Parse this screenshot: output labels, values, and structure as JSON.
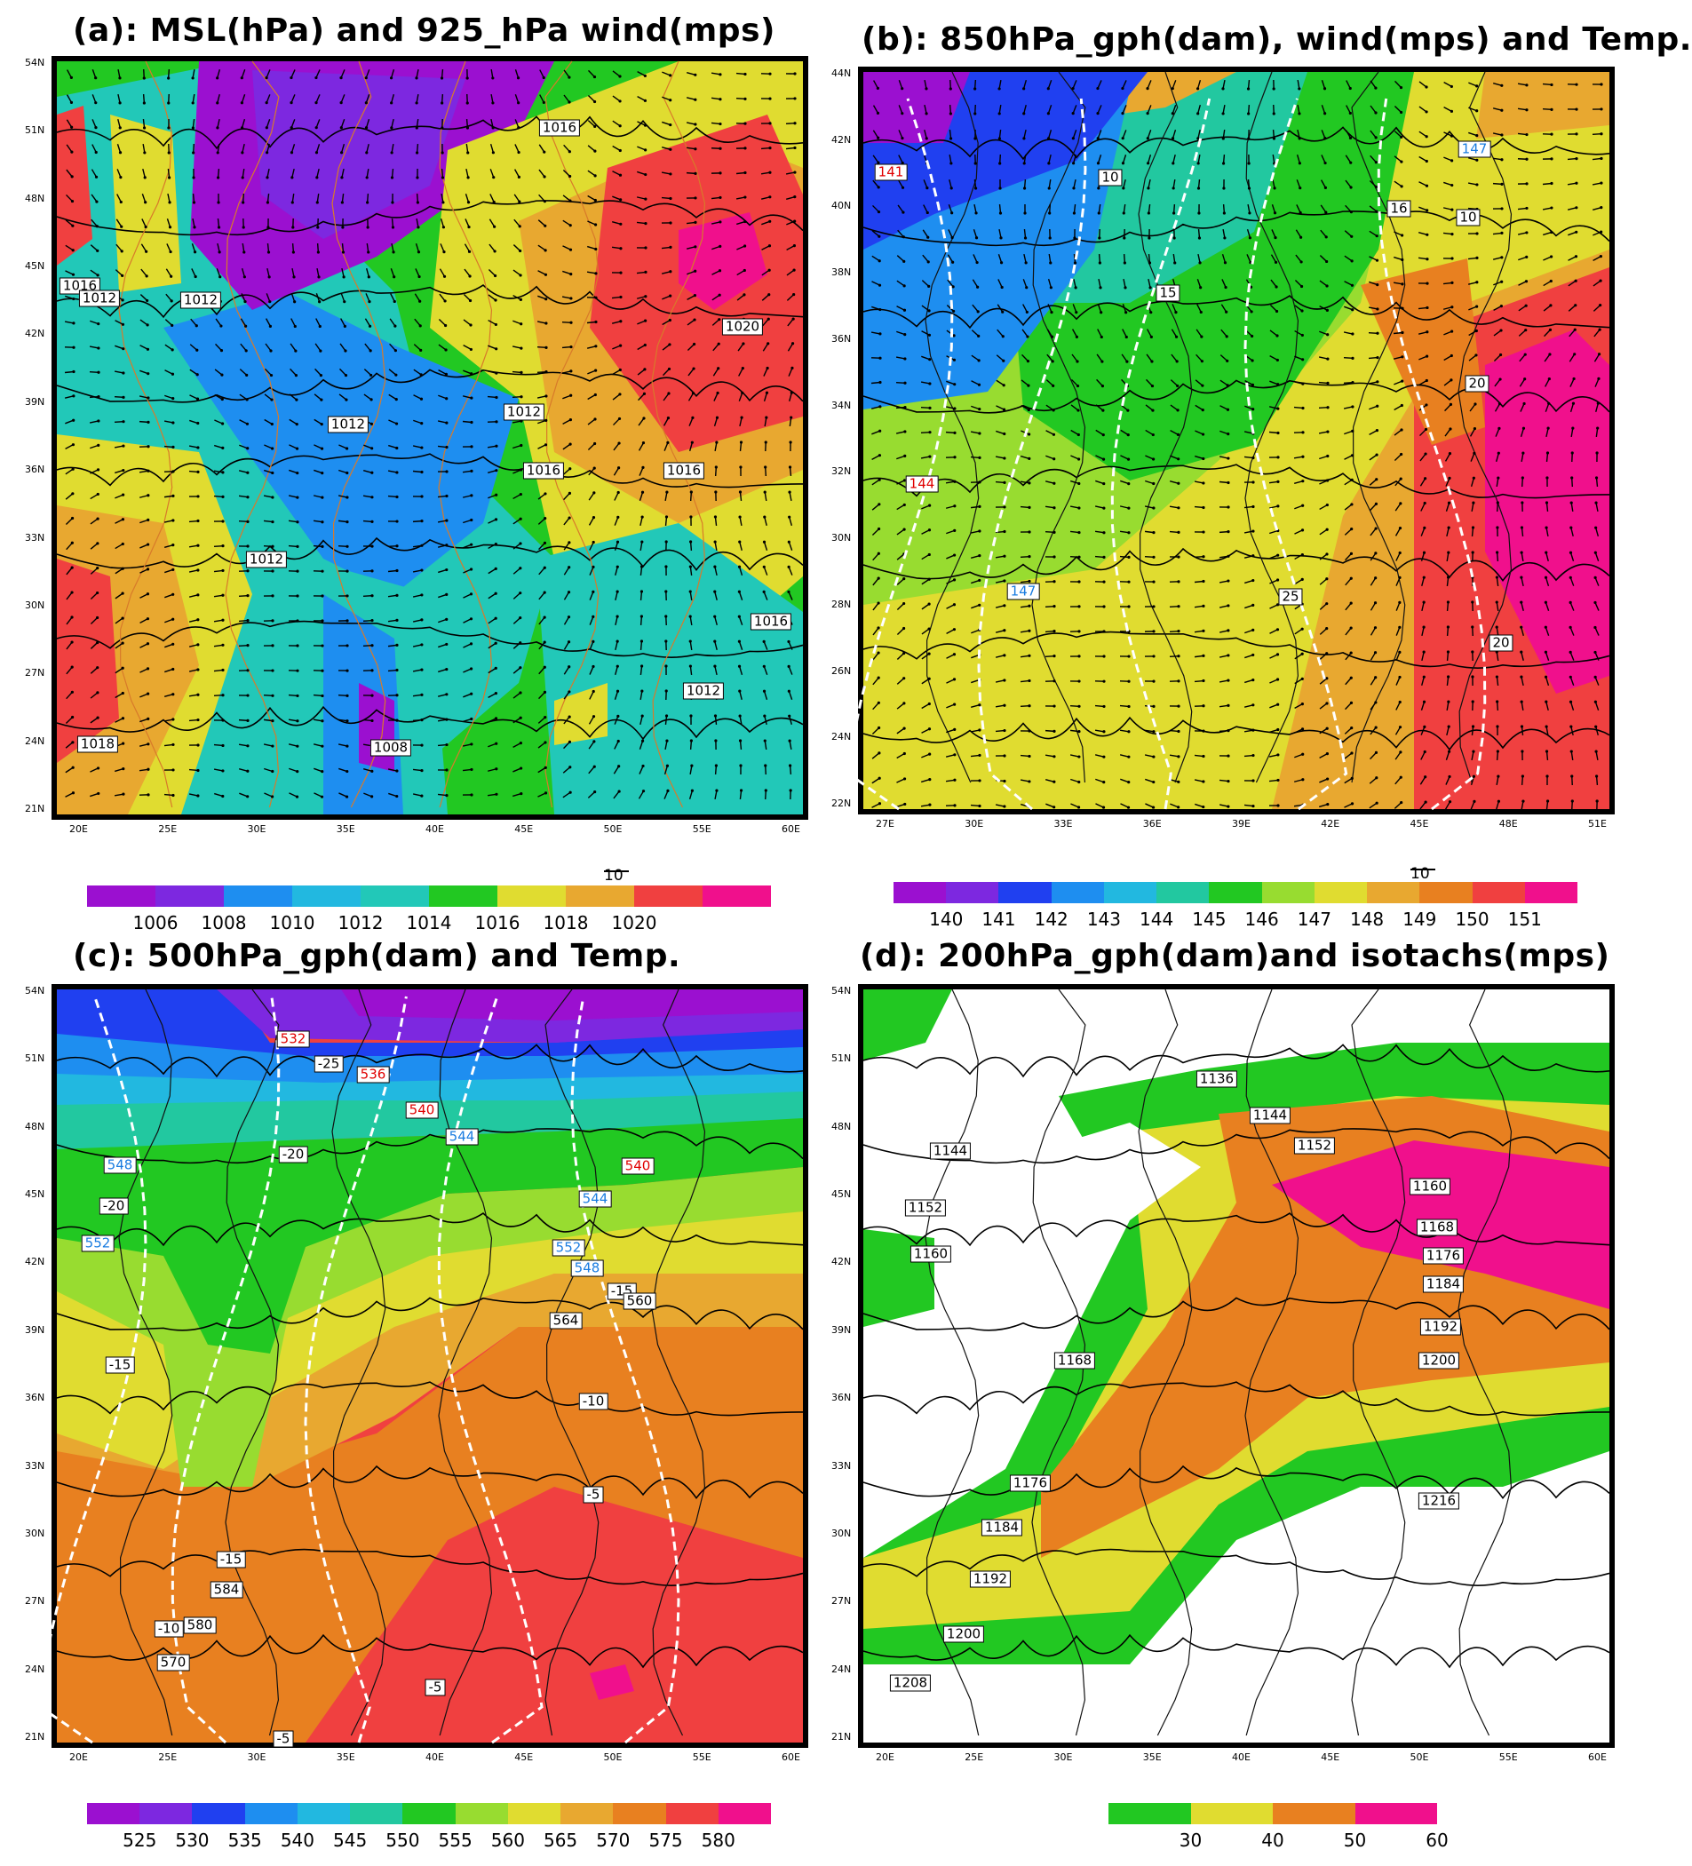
{
  "panels": [
    {
      "id": "a",
      "title": "(a): MSL(hPa) and 925_hPa wind(mps)",
      "lat_ticks": [
        "54N",
        "51N",
        "48N",
        "45N",
        "42N",
        "39N",
        "36N",
        "33N",
        "30N",
        "27N",
        "24N",
        "21N"
      ],
      "lon_ticks": [
        "20E",
        "25E",
        "30E",
        "35E",
        "40E",
        "45E",
        "50E",
        "55E",
        "60E"
      ],
      "vector_ref": "10",
      "colorbar": {
        "colors": [
          "#9b10d0",
          "#7d28e0",
          "#1e8ef0",
          "#22b8e0",
          "#22c8b8",
          "#22c822",
          "#e0dc30",
          "#e8a830",
          "#f04040",
          "#f0108c"
        ],
        "labels": [
          "1006",
          "1008",
          "1010",
          "1012",
          "1014",
          "1016",
          "1018",
          "1020"
        ]
      },
      "contour_labels": [
        "1018",
        "1016",
        "1012",
        "1012",
        "1020",
        "1012",
        "1016",
        "1016",
        "1012",
        "1012",
        "1016",
        "1012",
        "1008",
        "1016"
      ]
    },
    {
      "id": "b",
      "title": "(b): 850hPa_gph(dam), wind(mps) and Temp.",
      "lat_ticks": [
        "44N",
        "42N",
        "40N",
        "38N",
        "36N",
        "34N",
        "32N",
        "30N",
        "28N",
        "26N",
        "24N",
        "22N"
      ],
      "lon_ticks": [
        "27E",
        "30E",
        "33E",
        "36E",
        "39E",
        "42E",
        "45E",
        "48E",
        "51E"
      ],
      "vector_ref": "10",
      "colorbar": {
        "colors": [
          "#9b10d0",
          "#7d28e0",
          "#2040f0",
          "#1e8ef0",
          "#22b8e0",
          "#22c8a0",
          "#22c822",
          "#98dc30",
          "#e0dc30",
          "#e8a830",
          "#e88020",
          "#f04040",
          "#f0108c"
        ],
        "labels": [
          "140",
          "141",
          "142",
          "143",
          "144",
          "145",
          "146",
          "147",
          "148",
          "149",
          "150",
          "151"
        ]
      },
      "contour_labels": [
        "141",
        "10",
        "147",
        "16",
        "10",
        "15",
        "144",
        "20",
        "147",
        "25",
        "20"
      ]
    },
    {
      "id": "c",
      "title": "(c): 500hPa_gph(dam) and Temp.",
      "lat_ticks": [
        "54N",
        "51N",
        "48N",
        "45N",
        "42N",
        "39N",
        "36N",
        "33N",
        "30N",
        "27N",
        "24N",
        "21N"
      ],
      "lon_ticks": [
        "20E",
        "25E",
        "30E",
        "35E",
        "40E",
        "45E",
        "50E",
        "55E",
        "60E"
      ],
      "colorbar": {
        "colors": [
          "#9b10d0",
          "#7d28e0",
          "#2040f0",
          "#1e8ef0",
          "#22b8e0",
          "#22c8a0",
          "#22c822",
          "#98dc30",
          "#e0dc30",
          "#e8a830",
          "#e88020",
          "#f04040",
          "#f0108c"
        ],
        "labels": [
          "525",
          "530",
          "535",
          "540",
          "545",
          "550",
          "555",
          "560",
          "565",
          "570",
          "575",
          "580"
        ]
      },
      "contour_labels": [
        "532",
        "-25",
        "536",
        "540",
        "-20",
        "544",
        "548",
        "540",
        "-20",
        "544",
        "552",
        "548",
        "552",
        "-15",
        "560",
        "564",
        "-15",
        "-10",
        "-5",
        "-15",
        "584",
        "-10",
        "580",
        "570",
        "-5",
        "-5"
      ]
    },
    {
      "id": "d",
      "title": "(d): 200hPa_gph(dam)and isotachs(mps)",
      "lat_ticks": [
        "54N",
        "51N",
        "48N",
        "45N",
        "42N",
        "39N",
        "36N",
        "33N",
        "30N",
        "27N",
        "24N",
        "21N"
      ],
      "lon_ticks": [
        "20E",
        "25E",
        "30E",
        "35E",
        "40E",
        "45E",
        "50E",
        "55E",
        "60E"
      ],
      "colorbar": {
        "colors": [
          "#22c822",
          "#e0dc30",
          "#e88020",
          "#f0108c"
        ],
        "labels": [
          "30",
          "40",
          "50",
          "60"
        ]
      },
      "contour_labels": [
        "1136",
        "1144",
        "1144",
        "1152",
        "1152",
        "1160",
        "1160",
        "1168",
        "1176",
        "1184",
        "1192",
        "1200",
        "1168",
        "1176",
        "1184",
        "1192",
        "1200",
        "1208",
        "1216"
      ]
    }
  ]
}
